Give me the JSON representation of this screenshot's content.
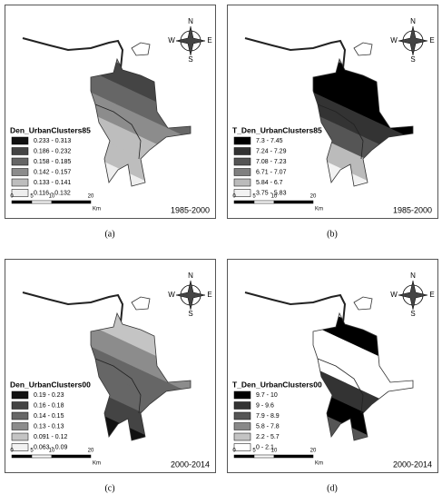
{
  "compass": {
    "north": "N",
    "south": "S",
    "east": "E",
    "west": "W"
  },
  "scale_bar": {
    "ticks": [
      "0",
      "5",
      "10",
      "20"
    ],
    "unit": "Km"
  },
  "panels": [
    {
      "legend_title": "Den_UrbanClusters85",
      "period": "1985-2000",
      "caption": "(a)",
      "classes": [
        {
          "label": "0.233 - 0.313",
          "color": "#111111"
        },
        {
          "label": "0.186 - 0.232",
          "color": "#444444"
        },
        {
          "label": "0.158 - 0.185",
          "color": "#666666"
        },
        {
          "label": "0.142 - 0.157",
          "color": "#8c8c8c"
        },
        {
          "label": "0.133 - 0.141",
          "color": "#bdbdbd"
        },
        {
          "label": "0.116 - 0.132",
          "color": "#eeeeee"
        }
      ]
    },
    {
      "legend_title": "T_Den_UrbanClusters85",
      "period": "1985-2000",
      "caption": "(b)",
      "classes": [
        {
          "label": "7.3 - 7.45",
          "color": "#000000"
        },
        {
          "label": "7.24 - 7.29",
          "color": "#333333"
        },
        {
          "label": "7.08 - 7.23",
          "color": "#555555"
        },
        {
          "label": "6.71 - 7.07",
          "color": "#808080"
        },
        {
          "label": "5.84 - 6.7",
          "color": "#bbbbbb"
        },
        {
          "label": "3.75 - 5.83",
          "color": "#f2f2f2"
        }
      ]
    },
    {
      "legend_title": "Den_UrbanClusters00",
      "period": "2000-2014",
      "caption": "(c)",
      "classes": [
        {
          "label": "0.19 - 0.23",
          "color": "#111111"
        },
        {
          "label": "0.16 - 0.18",
          "color": "#444444"
        },
        {
          "label": "0.14 - 0.15",
          "color": "#666666"
        },
        {
          "label": "0.13 - 0.13",
          "color": "#8c8c8c"
        },
        {
          "label": "0.091 - 0.12",
          "color": "#c4c4c4"
        },
        {
          "label": "0.063 - 0.09",
          "color": "#f2f2f2"
        }
      ]
    },
    {
      "legend_title": "T_Den_UrbanClusters00",
      "period": "2000-2014",
      "caption": "(d)",
      "classes": [
        {
          "label": "9.7 - 10",
          "color": "#000000"
        },
        {
          "label": "9 - 9.6",
          "color": "#333333"
        },
        {
          "label": "7.9 - 8.9",
          "color": "#555555"
        },
        {
          "label": "5.8 - 7.8",
          "color": "#888888"
        },
        {
          "label": "2.2 - 5.7",
          "color": "#c4c4c4"
        },
        {
          "label": "0 - 2.1",
          "color": "#ffffff"
        }
      ]
    }
  ]
}
